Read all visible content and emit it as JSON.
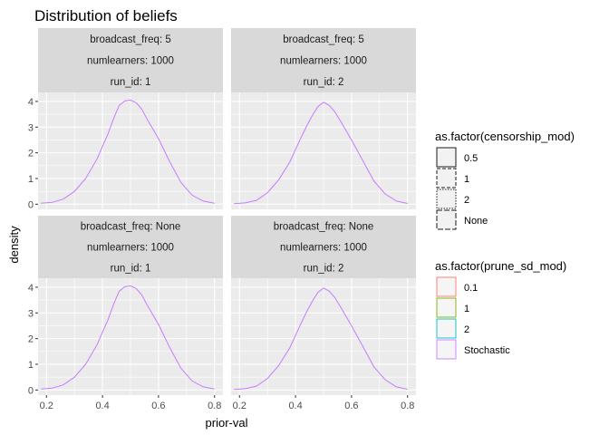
{
  "chart_data": {
    "type": "line",
    "title": "Distribution of beliefs",
    "xlabel": "prior-val",
    "ylabel": "density",
    "xlim": [
      0.17,
      0.83
    ],
    "ylim": [
      -0.2,
      4.35
    ],
    "x_ticks": [
      0.2,
      0.4,
      0.6,
      0.8
    ],
    "x_tick_labels": [
      "0.2",
      "0.4",
      "0.6",
      "0.8"
    ],
    "y_ticks": [
      0,
      1,
      2,
      3,
      4
    ],
    "y_tick_labels": [
      "0",
      "1",
      "2",
      "3",
      "4"
    ],
    "grid": true,
    "legend_position": "right",
    "line_color": "#c77cff",
    "panels": [
      {
        "strip": [
          "broadcast_freq: 5",
          "numlearners: 1000",
          "run_id: 1"
        ],
        "series": [
          {
            "x": [
              0.18,
              0.22,
              0.26,
              0.3,
              0.34,
              0.38,
              0.42,
              0.44,
              0.46,
              0.48,
              0.5,
              0.52,
              0.54,
              0.56,
              0.6,
              0.64,
              0.68,
              0.72,
              0.76,
              0.8
            ],
            "y": [
              0.04,
              0.07,
              0.2,
              0.5,
              1.0,
              1.75,
              2.75,
              3.35,
              3.85,
              4.02,
              4.05,
              3.95,
              3.7,
              3.3,
              2.55,
              1.65,
              0.85,
              0.35,
              0.12,
              0.04
            ]
          }
        ]
      },
      {
        "strip": [
          "broadcast_freq: 5",
          "numlearners: 1000",
          "run_id: 2"
        ],
        "series": [
          {
            "x": [
              0.18,
              0.22,
              0.26,
              0.3,
              0.34,
              0.38,
              0.42,
              0.44,
              0.46,
              0.48,
              0.5,
              0.52,
              0.54,
              0.56,
              0.6,
              0.64,
              0.68,
              0.72,
              0.76,
              0.8
            ],
            "y": [
              0.02,
              0.05,
              0.15,
              0.45,
              0.95,
              1.65,
              2.6,
              3.05,
              3.45,
              3.8,
              3.97,
              3.85,
              3.6,
              3.25,
              2.5,
              1.7,
              0.9,
              0.4,
              0.12,
              0.03
            ]
          }
        ]
      },
      {
        "strip": [
          "broadcast_freq: None",
          "numlearners: 1000",
          "run_id: 1"
        ],
        "series": [
          {
            "x": [
              0.18,
              0.22,
              0.26,
              0.3,
              0.34,
              0.38,
              0.42,
              0.44,
              0.46,
              0.48,
              0.5,
              0.52,
              0.54,
              0.56,
              0.6,
              0.64,
              0.68,
              0.72,
              0.76,
              0.8
            ],
            "y": [
              0.04,
              0.07,
              0.2,
              0.5,
              1.0,
              1.75,
              2.75,
              3.35,
              3.85,
              4.02,
              4.05,
              3.95,
              3.7,
              3.3,
              2.55,
              1.65,
              0.85,
              0.35,
              0.12,
              0.04
            ]
          }
        ]
      },
      {
        "strip": [
          "broadcast_freq: None",
          "numlearners: 1000",
          "run_id: 2"
        ],
        "series": [
          {
            "x": [
              0.18,
              0.22,
              0.26,
              0.3,
              0.34,
              0.38,
              0.42,
              0.44,
              0.46,
              0.48,
              0.5,
              0.52,
              0.54,
              0.56,
              0.6,
              0.64,
              0.68,
              0.72,
              0.76,
              0.8
            ],
            "y": [
              0.02,
              0.05,
              0.15,
              0.45,
              0.95,
              1.65,
              2.6,
              3.05,
              3.45,
              3.8,
              3.97,
              3.85,
              3.6,
              3.25,
              2.5,
              1.7,
              0.9,
              0.4,
              0.12,
              0.03
            ]
          }
        ]
      }
    ],
    "legends": [
      {
        "title": "as.factor(censorship_mod)",
        "items": [
          {
            "label": "0.5",
            "linetype": "solid"
          },
          {
            "label": "1",
            "linetype": "dashed"
          },
          {
            "label": "2",
            "linetype": "dotted"
          },
          {
            "label": "None",
            "linetype": "longdash"
          }
        ]
      },
      {
        "title": "as.factor(prune_sd_mod)",
        "items": [
          {
            "label": "0.1",
            "color": "#f8766d"
          },
          {
            "label": "1",
            "color": "#7cae00"
          },
          {
            "label": "2",
            "color": "#00bfc4"
          },
          {
            "label": "Stochastic",
            "color": "#c77cff"
          }
        ]
      }
    ]
  }
}
